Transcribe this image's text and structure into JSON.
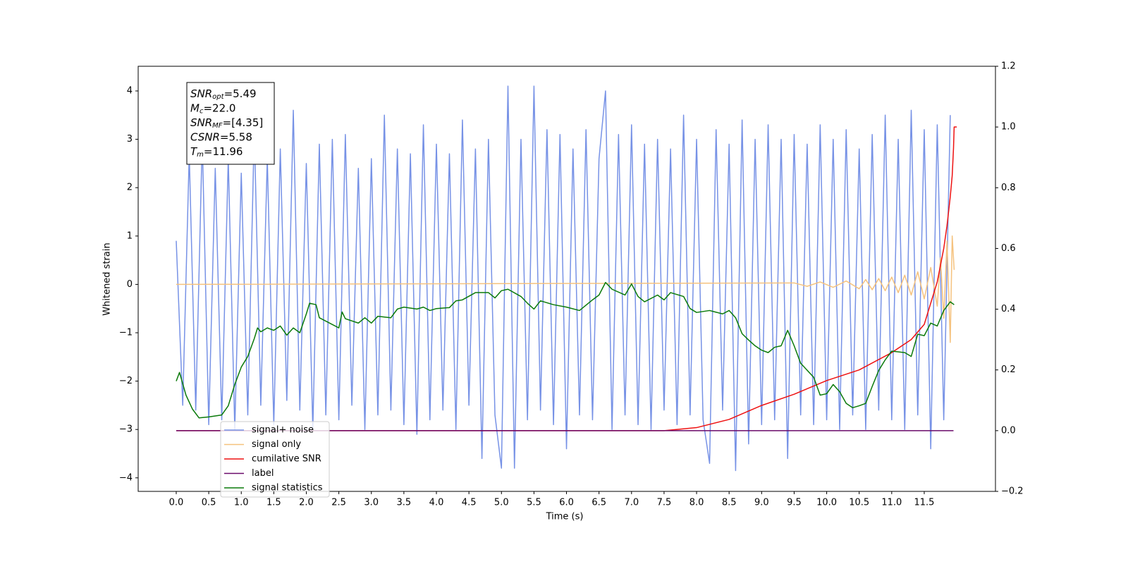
{
  "chart_data": {
    "type": "line",
    "xlabel": "Time (s)",
    "ylabel": "Whitened strain",
    "xlim": [
      -0.585,
      12.595
    ],
    "ylim": [
      -4.28,
      4.51
    ],
    "y2lim": [
      -0.2,
      1.2
    ],
    "xticks": [
      {
        "value": 0,
        "label": "0.0"
      },
      0.5,
      {
        "value": 1,
        "label": "1.0"
      },
      1.5,
      {
        "value": 2,
        "label": "2.0"
      },
      2.5,
      {
        "value": 3,
        "label": "3.0"
      },
      3.5,
      {
        "value": 4,
        "label": "4.0"
      },
      4.5,
      {
        "value": 5,
        "label": "5.0"
      },
      5.5,
      {
        "value": 6,
        "label": "6.0"
      },
      6.5,
      {
        "value": 7,
        "label": "7.0"
      },
      7.5,
      {
        "value": 8,
        "label": "8.0"
      },
      8.5,
      {
        "value": 9,
        "label": "9.0"
      },
      9.5,
      {
        "value": 10,
        "label": "10.0"
      },
      10.5,
      {
        "value": 11,
        "label": "11.0"
      },
      11.5
    ],
    "yticks": [
      {
        "value": -4,
        "label": "−4"
      },
      {
        "value": -3,
        "label": "−3"
      },
      {
        "value": -2,
        "label": "−2"
      },
      {
        "value": -1,
        "label": "−1"
      },
      0,
      1,
      2,
      3,
      4
    ],
    "y2ticks": [
      {
        "value": -0.2,
        "label": "−0.2"
      },
      {
        "value": 0,
        "label": "0.0"
      },
      0.2,
      0.4,
      0.6,
      0.8,
      {
        "value": 1,
        "label": "1.0"
      },
      1.2
    ],
    "annotation": [
      {
        "main": "SNR",
        "sub": "opt",
        "rest": "=5.49"
      },
      {
        "main": "M",
        "sub": "c",
        "rest": "=22.0"
      },
      {
        "main": "SNR",
        "sub": "MF",
        "rest": "=[4.35]"
      },
      {
        "main": "CSNR",
        "sub": null,
        "rest": "=5.58"
      },
      {
        "main": "T",
        "sub": "m",
        "rest": "=11.96"
      }
    ],
    "series": [
      {
        "name": "signal+ noise",
        "color": "#7792e6",
        "x": [
          0.0,
          0.1,
          0.2,
          0.3,
          0.4,
          0.5,
          0.6,
          0.7,
          0.8,
          0.9,
          1.0,
          1.1,
          1.2,
          1.3,
          1.4,
          1.5,
          1.6,
          1.7,
          1.8,
          1.9,
          2.0,
          2.1,
          2.2,
          2.3,
          2.4,
          2.5,
          2.6,
          2.7,
          2.8,
          2.9,
          3.0,
          3.1,
          3.2,
          3.3,
          3.4,
          3.5,
          3.6,
          3.7,
          3.8,
          3.9,
          4.0,
          4.1,
          4.2,
          4.3,
          4.4,
          4.5,
          4.6,
          4.7,
          4.8,
          4.9,
          5.0,
          5.1,
          5.2,
          5.3,
          5.4,
          5.5,
          5.6,
          5.7,
          5.8,
          5.9,
          6.0,
          6.1,
          6.2,
          6.3,
          6.4,
          6.5,
          6.6,
          6.7,
          6.8,
          6.9,
          7.0,
          7.1,
          7.2,
          7.3,
          7.4,
          7.5,
          7.6,
          7.7,
          7.8,
          7.9,
          8.0,
          8.1,
          8.2,
          8.3,
          8.4,
          8.5,
          8.6,
          8.7,
          8.8,
          8.9,
          9.0,
          9.1,
          9.2,
          9.3,
          9.4,
          9.5,
          9.6,
          9.7,
          9.8,
          9.9,
          10.0,
          10.1,
          10.2,
          10.3,
          10.4,
          10.5,
          10.6,
          10.7,
          10.8,
          10.9,
          11.0,
          11.1,
          11.2,
          11.3,
          11.4,
          11.5,
          11.6,
          11.7,
          11.8,
          11.9
        ],
        "values": [
          0.9,
          -2.5,
          2.7,
          -2.6,
          3.0,
          -2.9,
          2.4,
          -2.8,
          2.6,
          -3.0,
          2.3,
          -2.7,
          3.2,
          -2.5,
          2.6,
          -2.9,
          2.8,
          -2.4,
          3.6,
          -2.6,
          2.5,
          -3.0,
          2.9,
          -2.7,
          3.0,
          -2.8,
          3.1,
          -2.5,
          2.4,
          -3.0,
          2.6,
          -2.7,
          3.5,
          -2.6,
          2.8,
          -2.9,
          2.7,
          -3.1,
          3.3,
          -2.8,
          2.9,
          -2.6,
          2.7,
          -3.0,
          3.4,
          -2.5,
          2.8,
          -3.6,
          3.0,
          -2.7,
          -3.8,
          4.1,
          -3.8,
          3.0,
          -2.8,
          4.1,
          -2.6,
          3.2,
          -2.9,
          3.1,
          -3.4,
          2.8,
          -2.7,
          3.2,
          -2.8,
          2.6,
          4.0,
          -3.0,
          3.1,
          -2.7,
          3.3,
          -2.9,
          2.9,
          -3.0,
          3.0,
          -2.6,
          2.8,
          -2.9,
          3.5,
          -2.7,
          3.0,
          -2.8,
          -3.7,
          3.2,
          -2.6,
          2.9,
          -3.85,
          3.4,
          -3.3,
          3.0,
          -2.9,
          3.3,
          -2.8,
          3.0,
          -3.6,
          3.1,
          -2.7,
          2.9,
          -2.9,
          3.3,
          -2.8,
          3.0,
          -3.0,
          3.2,
          -2.7,
          2.8,
          -3.0,
          3.1,
          -2.6,
          3.5,
          -2.8,
          3.0,
          -3.0,
          3.6,
          -2.7,
          3.2,
          -3.4,
          3.3,
          -2.8,
          3.5
        ]
      },
      {
        "name": "signal only",
        "color": "#f5c27e",
        "x": [
          0.0,
          9.5,
          9.7,
          9.9,
          10.1,
          10.3,
          10.5,
          10.6,
          10.7,
          10.8,
          10.9,
          11.0,
          11.1,
          11.2,
          11.3,
          11.4,
          11.5,
          11.6,
          11.7,
          11.75,
          11.8,
          11.85,
          11.9,
          11.93,
          11.96
        ],
        "values": [
          0,
          0.03,
          -0.04,
          0.05,
          -0.06,
          0.07,
          -0.09,
          0.1,
          -0.11,
          0.12,
          -0.13,
          0.15,
          -0.17,
          0.19,
          -0.22,
          0.26,
          -0.3,
          0.35,
          -0.45,
          0.55,
          -0.7,
          0.9,
          -1.2,
          1.0,
          0.3
        ]
      },
      {
        "name": "cumilative SNR",
        "color": "#ee1111",
        "axis": "y2",
        "x": [
          0,
          7.5,
          8.0,
          8.5,
          9.0,
          9.5,
          10.0,
          10.5,
          11.0,
          11.3,
          11.5,
          11.7,
          11.8,
          11.85,
          11.9,
          11.93,
          11.95,
          11.96,
          12.0
        ],
        "values": [
          0,
          0,
          0.01,
          0.037,
          0.083,
          0.12,
          0.165,
          0.2,
          0.257,
          0.3,
          0.35,
          0.49,
          0.6,
          0.675,
          0.77,
          0.84,
          0.93,
          1.0,
          1.0
        ]
      },
      {
        "name": "label",
        "color": "#6a0a6a",
        "axis": "y2",
        "x": [
          0,
          11.95
        ],
        "values": [
          0,
          0
        ]
      },
      {
        "name": "signal statistics",
        "color": "#0a7a0a",
        "x": [
          0.0,
          0.05,
          0.15,
          0.25,
          0.35,
          0.5,
          0.7,
          0.8,
          0.9,
          1.0,
          1.1,
          1.2,
          1.25,
          1.3,
          1.4,
          1.5,
          1.6,
          1.7,
          1.8,
          1.9,
          2.0,
          2.05,
          2.15,
          2.2,
          2.4,
          2.5,
          2.55,
          2.6,
          2.8,
          2.9,
          3.0,
          3.1,
          3.3,
          3.4,
          3.5,
          3.7,
          3.8,
          3.9,
          4.0,
          4.2,
          4.3,
          4.4,
          4.6,
          4.8,
          4.9,
          5.0,
          5.1,
          5.3,
          5.4,
          5.5,
          5.6,
          5.8,
          6.0,
          6.2,
          6.4,
          6.5,
          6.6,
          6.7,
          6.9,
          7.0,
          7.1,
          7.2,
          7.4,
          7.5,
          7.6,
          7.8,
          7.9,
          8.0,
          8.2,
          8.4,
          8.5,
          8.6,
          8.7,
          8.8,
          8.9,
          9.0,
          9.1,
          9.2,
          9.3,
          9.4,
          9.5,
          9.6,
          9.8,
          9.9,
          10.0,
          10.1,
          10.2,
          10.3,
          10.4,
          10.5,
          10.6,
          10.7,
          10.8,
          10.9,
          11.0,
          11.2,
          11.3,
          11.4,
          11.5,
          11.6,
          11.7,
          11.8,
          11.9,
          11.96
        ],
        "values": [
          -2.0,
          -1.82,
          -2.29,
          -2.58,
          -2.76,
          -2.74,
          -2.7,
          -2.51,
          -2.07,
          -1.71,
          -1.49,
          -1.12,
          -0.9,
          -0.98,
          -0.9,
          -0.95,
          -0.86,
          -1.05,
          -0.9,
          -1.0,
          -0.61,
          -0.39,
          -0.42,
          -0.69,
          -0.83,
          -0.9,
          -0.57,
          -0.71,
          -0.8,
          -0.69,
          -0.8,
          -0.66,
          -0.69,
          -0.51,
          -0.47,
          -0.51,
          -0.47,
          -0.54,
          -0.5,
          -0.48,
          -0.34,
          -0.32,
          -0.17,
          -0.17,
          -0.28,
          -0.13,
          -0.1,
          -0.25,
          -0.39,
          -0.51,
          -0.34,
          -0.42,
          -0.47,
          -0.54,
          -0.32,
          -0.22,
          0.04,
          -0.1,
          -0.22,
          0.01,
          -0.25,
          -0.36,
          -0.22,
          -0.32,
          -0.17,
          -0.25,
          -0.5,
          -0.58,
          -0.54,
          -0.61,
          -0.54,
          -0.69,
          -1.02,
          -1.15,
          -1.27,
          -1.36,
          -1.41,
          -1.3,
          -1.27,
          -0.95,
          -1.27,
          -1.63,
          -1.92,
          -2.29,
          -2.26,
          -2.07,
          -2.22,
          -2.46,
          -2.55,
          -2.51,
          -2.46,
          -2.11,
          -1.78,
          -1.56,
          -1.38,
          -1.41,
          -1.49,
          -1.03,
          -1.06,
          -0.8,
          -0.86,
          -0.54,
          -0.36,
          -0.42
        ]
      }
    ]
  }
}
